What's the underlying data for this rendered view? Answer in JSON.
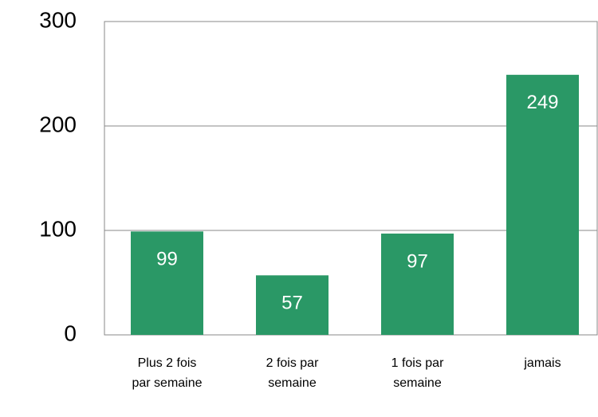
{
  "chart_data": {
    "type": "bar",
    "categories": [
      "Plus 2 fois par semaine",
      "2 fois par semaine",
      "1 fois par semaine",
      "jamais"
    ],
    "values": [
      99,
      57,
      97,
      249
    ],
    "color": "#2a9866",
    "ylim": [
      0,
      300
    ],
    "yticks": [
      0,
      100,
      200,
      300
    ],
    "grid": true
  }
}
